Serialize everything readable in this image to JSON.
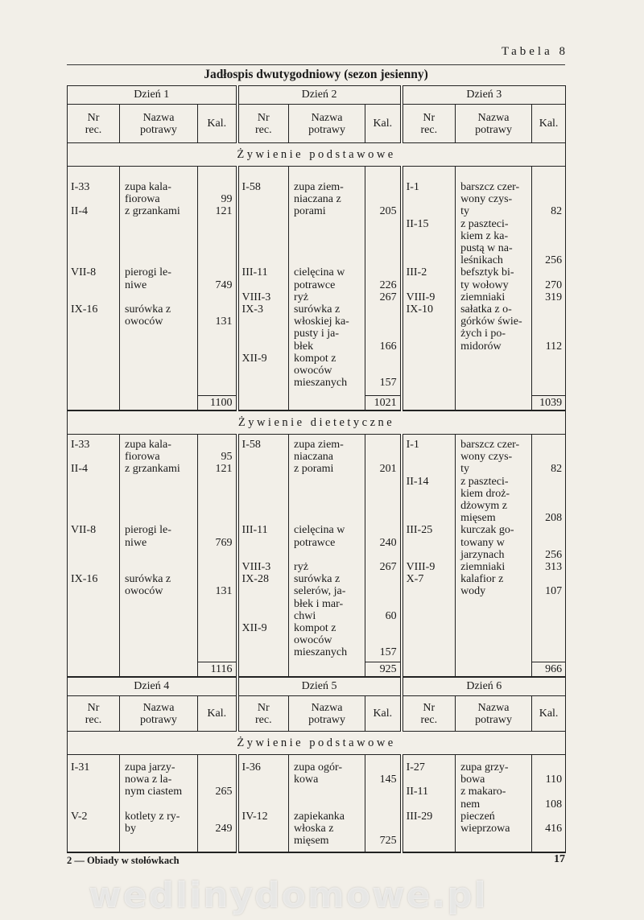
{
  "page": {
    "table_label": "Tabela 8",
    "title": "Jadłospis dwutygodniowy (sezon jesienny)",
    "footer_left": "2 — Obiady w stołówkach",
    "page_number": "17",
    "watermark": "wedlinydomowe.pl"
  },
  "columns": {
    "nr": "Nr\nrec.",
    "name": "Nazwa\npotrawy",
    "kal": "Kal."
  },
  "blocks": [
    {
      "days": [
        "Dzień 1",
        "Dzień 2",
        "Dzień 3"
      ],
      "sections": [
        {
          "label": "Żywienie podstawowe",
          "days": [
            {
              "nr": "I-33\n\nII-4\n\n\n\n\nVII-8\n\n\nIX-16",
              "name": "zupa kala-\nfiorowa\nz grzankami\n\n\n\n\npierogi le-\nniwe\n\nsurówka z\nowoców",
              "kal": "\n99\n121\n\n\n\n\n\n749\n\n\n131",
              "total": "1100"
            },
            {
              "nr": "I-58\n\n\n\n\n\n\nIII-11\n\nVIII-3\nIX-3\n\n\n\nXII-9",
              "name": "zupa ziem-\nniaczana z\nporami\n\n\n\n\ncielęcina w\npotrawce\nryż\nsurówka z\nwłoskiej ka-\npusty i ja-\nbłek\nkompot z\nowoców\nmieszanych",
              "kal": "\n\n205\n\n\n\n\n\n226\n267\n\n\n\n166\n\n\n157",
              "total": "1021"
            },
            {
              "nr": "I-1\n\n\nII-15\n\n\n\nIII-2\n\nVIII-9\nIX-10",
              "name": "barszcz czer-\nwony czys-\nty\nz paszteci-\nkiem z ka-\npustą w na-\nleśnikach\nbefsztyk bi-\nty wołowy\nziemniaki\nsałatka z o-\ngórków świe-\nżych i po-\nmidorów",
              "kal": "\n\n82\n\n\n\n256\n\n270\n319\n\n\n\n112",
              "total": "1039"
            }
          ]
        },
        {
          "label": "Żywienie dietetyczne",
          "days": [
            {
              "nr": "I-33\n\nII-4\n\n\n\n\nVII-8\n\n\n\nIX-16",
              "name": "zupa kala-\nfiorowa\nz grzankami\n\n\n\n\npierogi le-\nniwe\n\n\nsurówka z\nowoców",
              "kal": "\n95\n121\n\n\n\n\n\n769\n\n\n\n131",
              "total": "1116"
            },
            {
              "nr": "I-58\n\n\n\n\n\n\nIII-11\n\n\nVIII-3\nIX-28\n\n\n\nXII-9",
              "name": "zupa ziem-\nniaczana\nz porami\n\n\n\n\ncielęcina w\npotrawce\n\nryż\nsurówka z\nselerów, ja-\nbłek i mar-\nchwi\nkompot z\nowoców\nmieszanych",
              "kal": "\n\n201\n\n\n\n\n\n240\n\n267\n\n\n\n60\n\n\n157",
              "total": "925"
            },
            {
              "nr": "I-1\n\n\nII-14\n\n\n\nIII-25\n\n\nVIII-9\nX-7",
              "name": "barszcz czer-\nwony czys-\nty\nz paszteci-\nkiem droż-\ndżowym z\nmięsem\nkurczak go-\ntowany w\njarzynach\nziemniaki\nkalafior z\nwody",
              "kal": "\n\n82\n\n\n\n208\n\n\n256\n313\n\n107",
              "total": "966"
            }
          ]
        }
      ]
    },
    {
      "days": [
        "Dzień 4",
        "Dzień 5",
        "Dzień 6"
      ],
      "sections": [
        {
          "label": "Żywienie podstawowe",
          "days": [
            {
              "nr": "I-31\n\n\n\nV-2",
              "name": "zupa jarzy-\nnowa z la-\nnym ciastem\n\nkotlety z ry-\nby",
              "kal": "\n\n265\n\n\n249",
              "total": ""
            },
            {
              "nr": "I-36\n\n\n\nIV-12",
              "name": "zupa ogór-\nkowa\n\n\nzapiekanka\nwłoska z\nmięsem",
              "kal": "\n145\n\n\n\n\n725",
              "total": ""
            },
            {
              "nr": "I-27\n\nII-11\n\nIII-29",
              "name": "zupa grzy-\nbowa\nz makaro-\nnem\npieczeń\nwieprzowa",
              "kal": "\n110\n\n108\n\n416",
              "total": ""
            }
          ]
        }
      ]
    }
  ]
}
